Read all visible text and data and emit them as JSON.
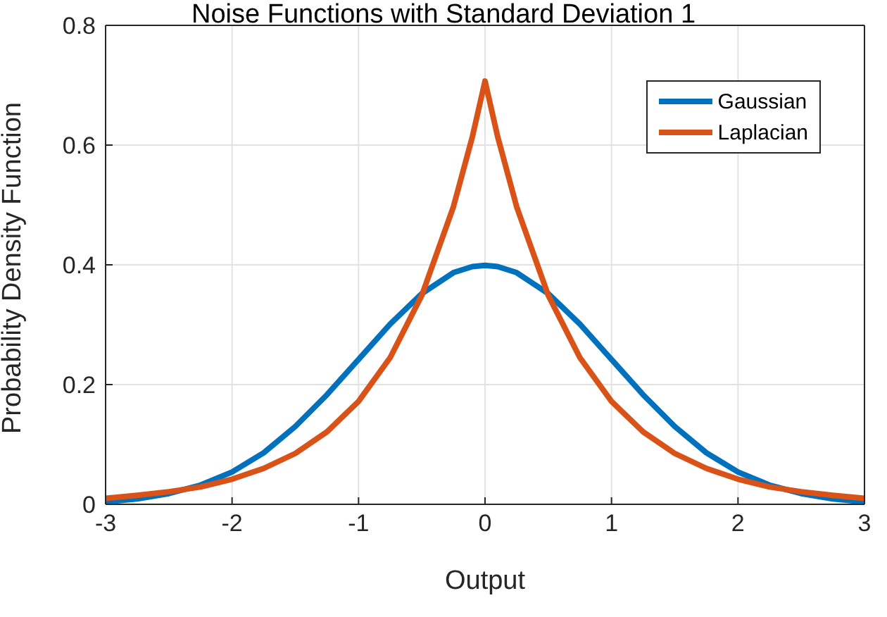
{
  "chart_data": {
    "type": "line",
    "title": "Noise Functions with Standard Deviation 1",
    "xlabel": "Output",
    "ylabel": "Probability Density Function",
    "x": [
      -3,
      -2.75,
      -2.5,
      -2.25,
      -2,
      -1.75,
      -1.5,
      -1.25,
      -1,
      -0.75,
      -0.5,
      -0.25,
      -0.1,
      0,
      0.1,
      0.25,
      0.5,
      0.75,
      1,
      1.25,
      1.5,
      1.75,
      2,
      2.25,
      2.5,
      2.75,
      3
    ],
    "series": [
      {
        "name": "Gaussian",
        "color": "#0072bd",
        "values": [
          0.004,
          0.009,
          0.018,
          0.032,
          0.054,
          0.086,
          0.13,
          0.183,
          0.242,
          0.301,
          0.352,
          0.387,
          0.397,
          0.399,
          0.397,
          0.387,
          0.352,
          0.301,
          0.242,
          0.183,
          0.13,
          0.086,
          0.054,
          0.032,
          0.018,
          0.009,
          0.004
        ]
      },
      {
        "name": "Laplacian",
        "color": "#d95319",
        "values": [
          0.01,
          0.015,
          0.021,
          0.029,
          0.042,
          0.06,
          0.085,
          0.121,
          0.172,
          0.245,
          0.349,
          0.497,
          0.614,
          0.707,
          0.614,
          0.497,
          0.349,
          0.245,
          0.172,
          0.121,
          0.085,
          0.06,
          0.042,
          0.029,
          0.021,
          0.015,
          0.01
        ]
      }
    ],
    "xlim": [
      -3,
      3
    ],
    "xticks": [
      -3,
      -2,
      -1,
      0,
      1,
      2,
      3
    ],
    "ylim": [
      0,
      0.8
    ],
    "yticks": [
      0,
      0.2,
      0.4,
      0.6,
      0.8
    ],
    "grid": true,
    "legend": "top right",
    "marker": "none",
    "line_style": "solid"
  }
}
